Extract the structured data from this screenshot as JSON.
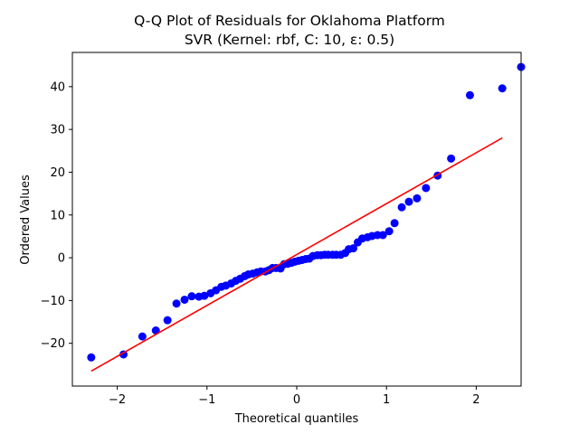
{
  "chart_data": {
    "type": "scatter",
    "title_line1": "Q-Q Plot of Residuals for Oklahoma Platform",
    "title_line2": "SVR (Kernel: rbf, C: 10, ε: 0.5)",
    "xlabel": "Theoretical quantiles",
    "ylabel": "Ordered Values",
    "xlim": [
      -2.5,
      2.5
    ],
    "ylim": [
      -30,
      48
    ],
    "xticks": [
      -2,
      -1,
      0,
      1,
      2
    ],
    "xtick_labels": [
      "−2",
      "−1",
      "0",
      "1",
      "2"
    ],
    "yticks": [
      -20,
      -10,
      0,
      10,
      20,
      30,
      40
    ],
    "ytick_labels": [
      "−20",
      "−10",
      "0",
      "10",
      "20",
      "30",
      "40"
    ],
    "grid": false,
    "colors": {
      "points": "#0000ff",
      "fit_line": "#ff0000"
    },
    "fit_line": {
      "x": [
        -2.29,
        2.29
      ],
      "y": [
        -26.5,
        28.0
      ]
    },
    "points": [
      [
        -2.29,
        -23.3
      ],
      [
        -1.93,
        -22.6
      ],
      [
        -1.72,
        -18.4
      ],
      [
        -1.57,
        -17.0
      ],
      [
        -1.44,
        -14.6
      ],
      [
        -1.34,
        -10.7
      ],
      [
        -1.25,
        -9.8
      ],
      [
        -1.17,
        -9.0
      ],
      [
        -1.09,
        -9.1
      ],
      [
        -1.03,
        -8.9
      ],
      [
        -0.96,
        -8.3
      ],
      [
        -0.9,
        -7.6
      ],
      [
        -0.84,
        -6.8
      ],
      [
        -0.79,
        -6.5
      ],
      [
        -0.73,
        -6.0
      ],
      [
        -0.68,
        -5.4
      ],
      [
        -0.63,
        -4.9
      ],
      [
        -0.58,
        -4.3
      ],
      [
        -0.54,
        -3.9
      ],
      [
        -0.49,
        -3.7
      ],
      [
        -0.44,
        -3.4
      ],
      [
        -0.4,
        -3.2
      ],
      [
        -0.35,
        -3.2
      ],
      [
        -0.31,
        -2.9
      ],
      [
        -0.27,
        -2.4
      ],
      [
        -0.23,
        -2.4
      ],
      [
        -0.18,
        -2.5
      ],
      [
        -0.14,
        -1.5
      ],
      [
        -0.1,
        -1.4
      ],
      [
        -0.06,
        -1.2
      ],
      [
        -0.02,
        -0.9
      ],
      [
        0.02,
        -0.7
      ],
      [
        0.06,
        -0.5
      ],
      [
        0.1,
        -0.3
      ],
      [
        0.14,
        -0.2
      ],
      [
        0.18,
        0.4
      ],
      [
        0.23,
        0.6
      ],
      [
        0.27,
        0.6
      ],
      [
        0.31,
        0.7
      ],
      [
        0.35,
        0.7
      ],
      [
        0.4,
        0.7
      ],
      [
        0.44,
        0.7
      ],
      [
        0.49,
        0.7
      ],
      [
        0.54,
        1.1
      ],
      [
        0.58,
        2.0
      ],
      [
        0.63,
        2.2
      ],
      [
        0.68,
        3.6
      ],
      [
        0.73,
        4.5
      ],
      [
        0.79,
        4.8
      ],
      [
        0.84,
        5.1
      ],
      [
        0.9,
        5.3
      ],
      [
        0.96,
        5.3
      ],
      [
        1.03,
        6.2
      ],
      [
        1.09,
        8.1
      ],
      [
        1.17,
        11.8
      ],
      [
        1.25,
        13.1
      ],
      [
        1.34,
        13.9
      ],
      [
        1.44,
        16.3
      ],
      [
        1.57,
        19.2
      ],
      [
        1.72,
        23.2
      ],
      [
        1.93,
        38.0
      ],
      [
        2.29,
        39.6
      ],
      [
        2.5,
        44.6
      ]
    ]
  }
}
